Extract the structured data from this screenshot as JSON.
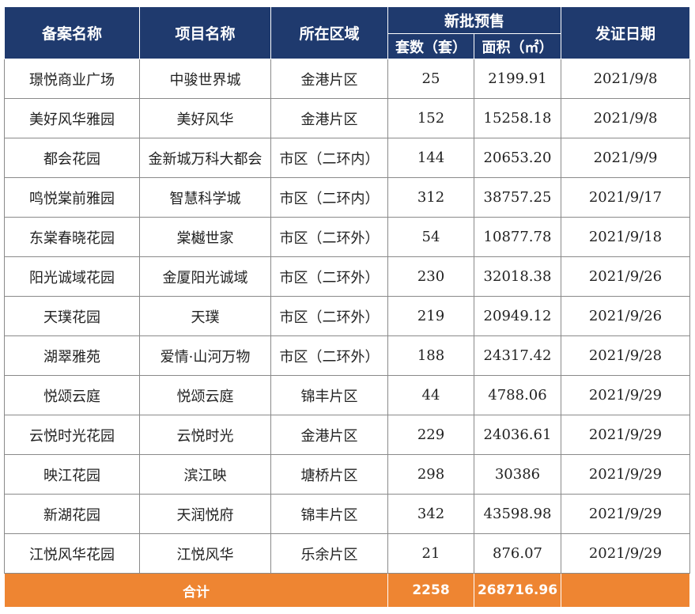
{
  "headers": {
    "name": "备案名称",
    "project": "项目名称",
    "district": "所在区域",
    "presale": "新批预售",
    "units": "套数（套）",
    "area": "面积（㎡）",
    "date": "发证日期"
  },
  "rows": [
    {
      "name": "璟悦商业广场",
      "project": "中骏世界城",
      "district": "金港片区",
      "units": "25",
      "area": "2199.91",
      "date": "2021/9/8"
    },
    {
      "name": "美好风华雅园",
      "project": "美好风华",
      "district": "金港片区",
      "units": "152",
      "area": "15258.18",
      "date": "2021/9/8"
    },
    {
      "name": "都会花园",
      "project": "金新城万科大都会",
      "district": "市区（二环内）",
      "units": "144",
      "area": "20653.20",
      "date": "2021/9/9"
    },
    {
      "name": "鸣悦棠前雅园",
      "project": "智慧科学城",
      "district": "市区（二环内）",
      "units": "312",
      "area": "38757.25",
      "date": "2021/9/17"
    },
    {
      "name": "东棠春晓花园",
      "project": "棠樾世家",
      "district": "市区（二环外）",
      "units": "54",
      "area": "10877.78",
      "date": "2021/9/18"
    },
    {
      "name": "阳光诚域花园",
      "project": "金厦阳光诚域",
      "district": "市区（二环外）",
      "units": "230",
      "area": "32018.38",
      "date": "2021/9/26"
    },
    {
      "name": "天璞花园",
      "project": "天璞",
      "district": "市区（二环外）",
      "units": "219",
      "area": "20949.12",
      "date": "2021/9/26"
    },
    {
      "name": "湖翠雅苑",
      "project": "爱情·山河万物",
      "district": "市区（二环外）",
      "units": "188",
      "area": "24317.42",
      "date": "2021/9/28"
    },
    {
      "name": "悦颂云庭",
      "project": "悦颂云庭",
      "district": "锦丰片区",
      "units": "44",
      "area": "4788.06",
      "date": "2021/9/29"
    },
    {
      "name": "云悦时光花园",
      "project": "云悦时光",
      "district": "金港片区",
      "units": "229",
      "area": "24036.61",
      "date": "2021/9/29"
    },
    {
      "name": "映江花园",
      "project": "滨江映",
      "district": "塘桥片区",
      "units": "298",
      "area": "30386",
      "date": "2021/9/29"
    },
    {
      "name": "新湖花园",
      "project": "天润悦府",
      "district": "锦丰片区",
      "units": "342",
      "area": "43598.98",
      "date": "2021/9/29"
    },
    {
      "name": "江悦风华花园",
      "project": "江悦风华",
      "district": "乐余片区",
      "units": "21",
      "area": "876.07",
      "date": "2021/9/29"
    }
  ],
  "total": {
    "label": "合计",
    "units": "2258",
    "area": "268716.96",
    "date": ""
  }
}
